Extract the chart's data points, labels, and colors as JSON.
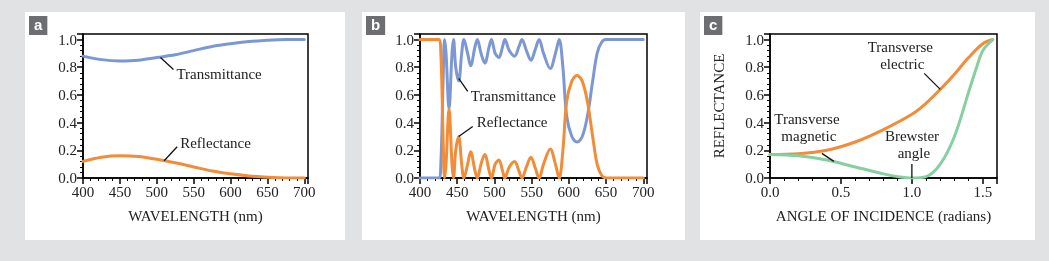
{
  "chart_data": [
    {
      "type": "line",
      "title": "a",
      "xlabel": "WAVELENGTH (nm)",
      "xlim": [
        400,
        705
      ],
      "xticks": [
        400,
        450,
        500,
        550,
        600,
        650,
        700
      ],
      "ylim": [
        0,
        1.04
      ],
      "yticks": [
        {
          "value": 0,
          "label": "0.0"
        },
        {
          "value": 0.2,
          "label": "0.2"
        },
        {
          "value": 0.4,
          "label": "0.4"
        },
        {
          "value": 0.6,
          "label": "0.6"
        },
        {
          "value": 0.8,
          "label": "0.8"
        },
        {
          "value": 1,
          "label": "1.0"
        }
      ],
      "grid": false,
      "marker": "none",
      "line_style": "solid",
      "x": [
        400,
        425,
        450,
        475,
        500,
        525,
        550,
        575,
        600,
        625,
        650,
        675,
        700
      ],
      "series": [
        {
          "color": "#7b98d4",
          "values": [
            0.88,
            0.855,
            0.845,
            0.85,
            0.87,
            0.89,
            0.92,
            0.95,
            0.97,
            0.985,
            0.995,
            1.0,
            1.0
          ]
        },
        {
          "color": "#f28c38",
          "values": [
            0.12,
            0.15,
            0.16,
            0.155,
            0.135,
            0.11,
            0.08,
            0.05,
            0.03,
            0.015,
            0.005,
            0,
            0
          ]
        }
      ],
      "annotations": [
        {
          "text": "Transmittance",
          "x": 505,
          "y": 0.87
        },
        {
          "text": "Reflectance",
          "x": 510,
          "y": 0.125
        }
      ]
    },
    {
      "type": "line",
      "title": "b",
      "xlabel": "WAVELENGTH (nm)",
      "xlim": [
        400,
        705
      ],
      "xticks": [
        400,
        450,
        500,
        550,
        600,
        650,
        700
      ],
      "ylim": [
        0,
        1.04
      ],
      "yticks": [
        {
          "value": 0,
          "label": "0.0"
        },
        {
          "value": 0.2,
          "label": "0.2"
        },
        {
          "value": 0.4,
          "label": "0.4"
        },
        {
          "value": 0.6,
          "label": "0.6"
        },
        {
          "value": 0.8,
          "label": "0.8"
        },
        {
          "value": 1,
          "label": "1.0"
        }
      ],
      "grid": false,
      "marker": "none",
      "line_style": "solid",
      "x": [
        400,
        425,
        428,
        431,
        433,
        435,
        439,
        443,
        445,
        448,
        452,
        456,
        459,
        464,
        468,
        474,
        477,
        482,
        487,
        493,
        496,
        501,
        506,
        511,
        514,
        520,
        527,
        533,
        537,
        543,
        549,
        555,
        560,
        566,
        575,
        582,
        587,
        592,
        597,
        604,
        611,
        618,
        625,
        632,
        638,
        644,
        650,
        700
      ],
      "series": [
        {
          "color": "#7b98d4",
          "values": [
            0,
            0,
            0.1,
            0.7,
            1,
            0.9,
            0.5,
            0.9,
            1,
            0.8,
            0.7,
            0.9,
            1,
            0.9,
            0.81,
            0.95,
            1,
            0.9,
            0.83,
            0.95,
            1,
            0.9,
            0.87,
            0.95,
            1,
            0.92,
            0.88,
            0.95,
            1,
            0.92,
            0.85,
            0.93,
            1,
            0.9,
            0.79,
            0.9,
            1,
            0.8,
            0.45,
            0.3,
            0.26,
            0.3,
            0.45,
            0.7,
            0.9,
            0.98,
            1,
            1
          ]
        },
        {
          "color": "#f28c38",
          "values": [
            1,
            1,
            0.9,
            0.3,
            0,
            0.1,
            0.5,
            0.1,
            0,
            0.2,
            0.3,
            0.1,
            0,
            0.1,
            0.19,
            0.05,
            0,
            0.1,
            0.17,
            0.05,
            0,
            0.1,
            0.13,
            0.05,
            0,
            0.08,
            0.12,
            0.05,
            0,
            0.08,
            0.15,
            0.07,
            0,
            0.1,
            0.21,
            0.1,
            0,
            0.2,
            0.55,
            0.7,
            0.74,
            0.7,
            0.55,
            0.3,
            0.1,
            0.02,
            0,
            0
          ]
        }
      ],
      "annotations": [
        {
          "text": "Transmittance",
          "x": 452,
          "y": 0.72
        },
        {
          "text": "Reflectance",
          "x": 452,
          "y": 0.3
        }
      ]
    },
    {
      "type": "line",
      "title": "c",
      "xlabel": "ANGLE OF INCIDENCE (radians)",
      "ylabel": "REFLECTANCE",
      "xlim": [
        0,
        1.6
      ],
      "xticks": [
        {
          "value": 0,
          "label": "0.0"
        },
        {
          "value": 0.5,
          "label": "0.5"
        },
        {
          "value": 1,
          "label": "1.0"
        },
        {
          "value": 1.5,
          "label": "1.5"
        }
      ],
      "ylim": [
        0,
        1.04
      ],
      "yticks": [
        {
          "value": 0,
          "label": "0.0"
        },
        {
          "value": 0.2,
          "label": "0.2"
        },
        {
          "value": 0.4,
          "label": "0.4"
        },
        {
          "value": 0.6,
          "label": "0.6"
        },
        {
          "value": 0.8,
          "label": "0.8"
        },
        {
          "value": 1,
          "label": "1.0"
        }
      ],
      "grid": false,
      "marker": "none",
      "line_style": "solid",
      "series": [
        {
          "color": "#f28c38",
          "x": [
            0,
            0.2,
            0.4,
            0.6,
            0.8,
            1.0,
            1.1,
            1.2,
            1.3,
            1.4,
            1.5,
            1.57
          ],
          "values": [
            0.17,
            0.175,
            0.2,
            0.26,
            0.35,
            0.46,
            0.54,
            0.64,
            0.75,
            0.87,
            0.97,
            1.0
          ]
        },
        {
          "color": "#85cfa0",
          "x": [
            0,
            0.2,
            0.4,
            0.6,
            0.8,
            0.9,
            1.0,
            1.1,
            1.2,
            1.3,
            1.4,
            1.45,
            1.5,
            1.57
          ],
          "values": [
            0.17,
            0.16,
            0.13,
            0.08,
            0.03,
            0.01,
            0,
            0.01,
            0.1,
            0.3,
            0.62,
            0.78,
            0.92,
            1.0
          ]
        }
      ],
      "annotations": [
        {
          "text": "Transverse electric",
          "x": 1.2,
          "y": 0.64
        },
        {
          "text": "Transverse magnetic",
          "x": 0.45,
          "y": 0.12
        },
        {
          "text": "Brewster angle",
          "x": 1.0,
          "y": 0
        }
      ]
    }
  ]
}
